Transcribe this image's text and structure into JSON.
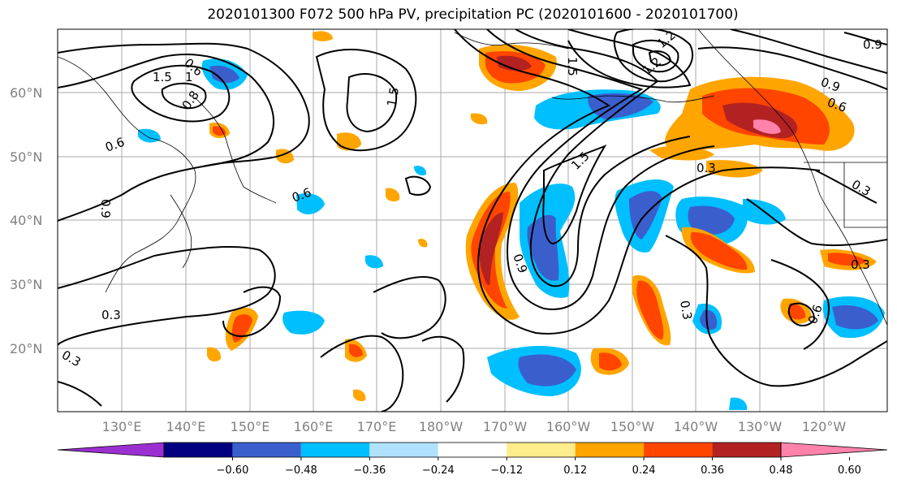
{
  "title": "2020101300 F072 500 hPa PV, precipitation PC (2020101600 - 2020101700)",
  "lat_labels": [
    "60°N",
    "50°N",
    "40°N",
    "30°N",
    "20°N"
  ],
  "lon_labels": [
    "130°E",
    "140°E",
    "150°E",
    "160°E",
    "170°E",
    "180°W",
    "170°W",
    "160°W",
    "150°W",
    "140°W",
    "130°W",
    "120°W"
  ],
  "contour_labels": [
    "0.6",
    "1.5",
    "1",
    "0.8",
    "0.6",
    "0.9",
    "0.6",
    "1.5",
    "1.2",
    "1.5",
    "0.3",
    "0.9",
    "1.5",
    "0.3",
    "0.9",
    "1.2",
    "0.6",
    "0.9",
    "0.3",
    "0.3",
    "0.6",
    "0.3",
    "0.3"
  ],
  "colorbar": {
    "ticks": [
      "−0.60",
      "−0.48",
      "−0.36",
      "−0.24",
      "−0.12",
      "0.12",
      "0.24",
      "0.36",
      "0.48",
      "0.60"
    ],
    "colors": [
      "#9b30d0",
      "#000080",
      "#3a5fcd",
      "#00bfff",
      "#b0e2ff",
      "#ffffff",
      "#ffec8b",
      "#ffa500",
      "#ff4500",
      "#b22222",
      "#ff82ab"
    ]
  }
}
